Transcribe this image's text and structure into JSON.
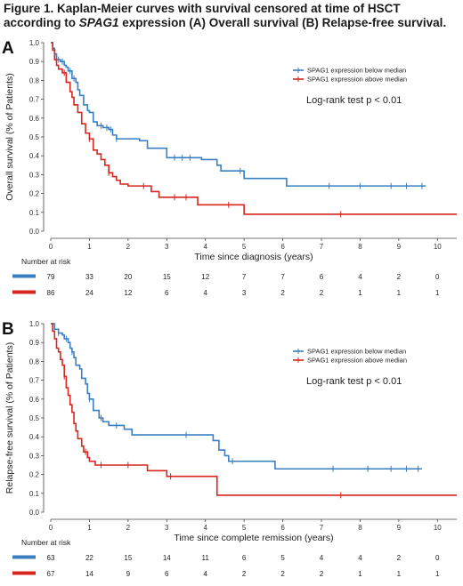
{
  "figure": {
    "title_part1": "Figure 1. Kaplan-Meier curves with survival censored at time of HSCT according to ",
    "title_gene": "SPAG1",
    "title_part2": " expression (A) Overall survival (B) Relapse-free survival."
  },
  "colors": {
    "below": "#3a7fc1",
    "above": "#d7261e",
    "axis": "#444444"
  },
  "chart_data": [
    {
      "panel": "A",
      "type": "line",
      "xlabel": "Time since diagnosis (years)",
      "ylabel": "Overall survival (% of Patients)",
      "xlim": [
        0,
        10.5
      ],
      "ylim": [
        0,
        1.0
      ],
      "x_ticks": [
        0,
        1,
        2,
        3,
        4,
        5,
        6,
        7,
        8,
        9,
        10
      ],
      "y_ticks": [
        "0.0",
        "0.1",
        "0.2",
        "0.3",
        "0.4",
        "0.5",
        "0.6",
        "0.7",
        "0.8",
        "0.9",
        "1.0"
      ],
      "legend": [
        "SPAG1 expression below median",
        "SPAG1 expression above median"
      ],
      "legend_position": "top-right",
      "annotation": "Log-rank test p < 0.01",
      "series": [
        {
          "name": "SPAG1 expression below median",
          "color_key": "below",
          "steps": [
            [
              0,
              1.0
            ],
            [
              0.05,
              0.97
            ],
            [
              0.1,
              0.94
            ],
            [
              0.15,
              0.91
            ],
            [
              0.25,
              0.9
            ],
            [
              0.35,
              0.88
            ],
            [
              0.4,
              0.87
            ],
            [
              0.45,
              0.85
            ],
            [
              0.55,
              0.81
            ],
            [
              0.65,
              0.79
            ],
            [
              0.7,
              0.75
            ],
            [
              0.75,
              0.72
            ],
            [
              0.85,
              0.67
            ],
            [
              0.95,
              0.64
            ],
            [
              1.0,
              0.63
            ],
            [
              1.1,
              0.58
            ],
            [
              1.2,
              0.56
            ],
            [
              1.35,
              0.55
            ],
            [
              1.5,
              0.54
            ],
            [
              1.6,
              0.51
            ],
            [
              1.7,
              0.49
            ],
            [
              2.3,
              0.48
            ],
            [
              2.5,
              0.44
            ],
            [
              3.0,
              0.39
            ],
            [
              3.1,
              0.39
            ],
            [
              3.9,
              0.38
            ],
            [
              4.3,
              0.35
            ],
            [
              4.4,
              0.32
            ],
            [
              5.0,
              0.28
            ],
            [
              6.1,
              0.24
            ],
            [
              9.7,
              0.24
            ]
          ],
          "censor_x": [
            0.2,
            0.3,
            0.5,
            0.6,
            1.3,
            1.45,
            1.55,
            1.7,
            3.2,
            3.4,
            3.6,
            4.9,
            7.2,
            8.0,
            8.8,
            9.2,
            9.6
          ]
        },
        {
          "name": "SPAG1 expression above median",
          "color_key": "above",
          "steps": [
            [
              0,
              1.0
            ],
            [
              0.05,
              0.96
            ],
            [
              0.1,
              0.91
            ],
            [
              0.15,
              0.88
            ],
            [
              0.2,
              0.86
            ],
            [
              0.3,
              0.84
            ],
            [
              0.4,
              0.79
            ],
            [
              0.5,
              0.74
            ],
            [
              0.55,
              0.71
            ],
            [
              0.6,
              0.67
            ],
            [
              0.7,
              0.63
            ],
            [
              0.8,
              0.57
            ],
            [
              0.9,
              0.52
            ],
            [
              1.0,
              0.49
            ],
            [
              1.1,
              0.43
            ],
            [
              1.2,
              0.41
            ],
            [
              1.3,
              0.38
            ],
            [
              1.4,
              0.35
            ],
            [
              1.5,
              0.31
            ],
            [
              1.6,
              0.29
            ],
            [
              1.7,
              0.27
            ],
            [
              1.8,
              0.25
            ],
            [
              2.0,
              0.24
            ],
            [
              2.6,
              0.21
            ],
            [
              2.8,
              0.18
            ],
            [
              3.8,
              0.14
            ],
            [
              5.0,
              0.09
            ],
            [
              10.5,
              0.09
            ]
          ],
          "censor_x": [
            0.35,
            1.0,
            1.5,
            2.4,
            3.2,
            3.5,
            4.6,
            7.5
          ]
        }
      ],
      "risk_table": {
        "header": "Number at risk",
        "rows": [
          {
            "color_key": "below",
            "values": [
              "79",
              "33",
              "20",
              "15",
              "12",
              "7",
              "7",
              "6",
              "4",
              "2",
              "0"
            ]
          },
          {
            "color_key": "above",
            "values": [
              "86",
              "24",
              "12",
              "6",
              "4",
              "3",
              "2",
              "2",
              "1",
              "1",
              "1"
            ]
          }
        ]
      }
    },
    {
      "panel": "B",
      "type": "line",
      "xlabel": "Time since complete remission (years)",
      "ylabel": "Relapse-free survival (% of Patients)",
      "xlim": [
        0,
        10.5
      ],
      "ylim": [
        0,
        1.0
      ],
      "x_ticks": [
        0,
        1,
        2,
        3,
        4,
        5,
        6,
        7,
        8,
        9,
        10
      ],
      "y_ticks": [
        "0.0",
        "0.1",
        "0.2",
        "0.3",
        "0.4",
        "0.5",
        "0.6",
        "0.7",
        "0.8",
        "0.9",
        "1.0"
      ],
      "legend": [
        "SPAG1 expression below median",
        "SPAG1 expression above median"
      ],
      "legend_position": "top-right",
      "annotation": "Log-rank test p < 0.01",
      "series": [
        {
          "name": "SPAG1 expression below median",
          "color_key": "below",
          "steps": [
            [
              0,
              1.0
            ],
            [
              0.1,
              0.97
            ],
            [
              0.2,
              0.95
            ],
            [
              0.3,
              0.94
            ],
            [
              0.35,
              0.92
            ],
            [
              0.45,
              0.9
            ],
            [
              0.5,
              0.87
            ],
            [
              0.55,
              0.85
            ],
            [
              0.6,
              0.82
            ],
            [
              0.65,
              0.78
            ],
            [
              0.75,
              0.76
            ],
            [
              0.8,
              0.71
            ],
            [
              0.9,
              0.68
            ],
            [
              0.95,
              0.63
            ],
            [
              1.0,
              0.6
            ],
            [
              1.1,
              0.54
            ],
            [
              1.25,
              0.5
            ],
            [
              1.35,
              0.48
            ],
            [
              1.5,
              0.46
            ],
            [
              1.9,
              0.44
            ],
            [
              2.1,
              0.41
            ],
            [
              4.2,
              0.38
            ],
            [
              4.35,
              0.33
            ],
            [
              4.5,
              0.3
            ],
            [
              4.6,
              0.27
            ],
            [
              5.8,
              0.23
            ],
            [
              9.6,
              0.23
            ]
          ],
          "censor_x": [
            0.2,
            0.4,
            0.55,
            1.0,
            1.3,
            1.7,
            3.5,
            4.7,
            7.3,
            8.2,
            8.8,
            9.2,
            9.5
          ]
        },
        {
          "name": "SPAG1 expression above median",
          "color_key": "above",
          "steps": [
            [
              0,
              1.0
            ],
            [
              0.05,
              0.96
            ],
            [
              0.1,
              0.92
            ],
            [
              0.15,
              0.87
            ],
            [
              0.2,
              0.85
            ],
            [
              0.25,
              0.81
            ],
            [
              0.3,
              0.78
            ],
            [
              0.35,
              0.72
            ],
            [
              0.4,
              0.66
            ],
            [
              0.45,
              0.62
            ],
            [
              0.5,
              0.57
            ],
            [
              0.55,
              0.53
            ],
            [
              0.6,
              0.47
            ],
            [
              0.65,
              0.43
            ],
            [
              0.7,
              0.39
            ],
            [
              0.8,
              0.35
            ],
            [
              0.85,
              0.32
            ],
            [
              0.95,
              0.29
            ],
            [
              1.0,
              0.27
            ],
            [
              1.15,
              0.25
            ],
            [
              2.5,
              0.22
            ],
            [
              3.0,
              0.19
            ],
            [
              4.3,
              0.09
            ],
            [
              10.5,
              0.09
            ]
          ],
          "censor_x": [
            0.35,
            0.9,
            1.3,
            2.0,
            3.1,
            7.5
          ]
        }
      ],
      "risk_table": {
        "header": "Number at risk",
        "rows": [
          {
            "color_key": "below",
            "values": [
              "63",
              "22",
              "15",
              "14",
              "11",
              "6",
              "5",
              "4",
              "4",
              "2",
              "0"
            ]
          },
          {
            "color_key": "above",
            "values": [
              "67",
              "14",
              "9",
              "6",
              "4",
              "2",
              "2",
              "2",
              "1",
              "1",
              "1"
            ]
          }
        ]
      }
    }
  ]
}
